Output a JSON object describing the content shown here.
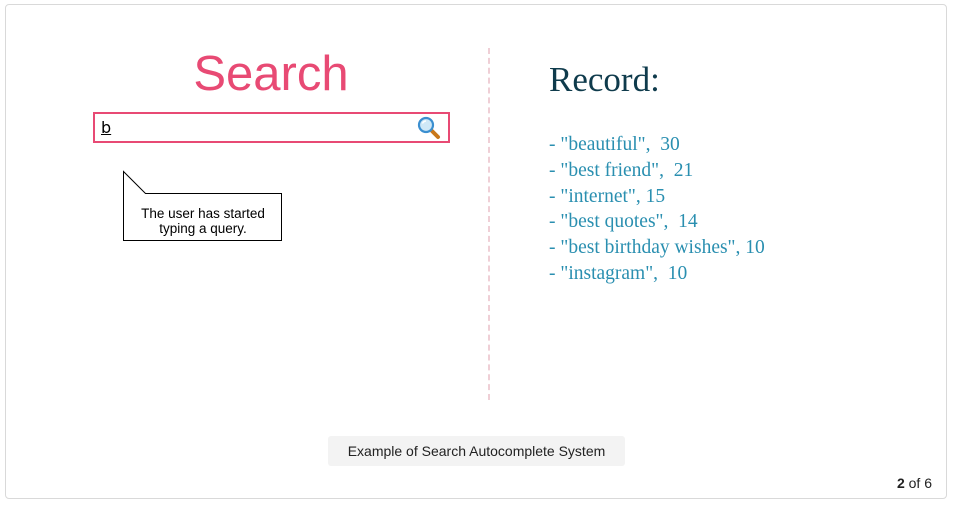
{
  "search": {
    "title": "Search",
    "query": "b",
    "accent_color": "#e84a74",
    "icon": "search-icon"
  },
  "callout": {
    "line1": "The user has started",
    "line2": "typing a query."
  },
  "record": {
    "title": "Record:",
    "items": [
      "- \"beautiful\",  30",
      "- \"best friend\",  21",
      "- \"internet\", 15",
      "- \"best quotes\",  14",
      "- \"best birthday wishes\", 10",
      "- \"instagram\",  10"
    ]
  },
  "caption": "Example of Search Autocomplete System",
  "pager": {
    "current": "2",
    "of_label": "of",
    "total": "6"
  }
}
